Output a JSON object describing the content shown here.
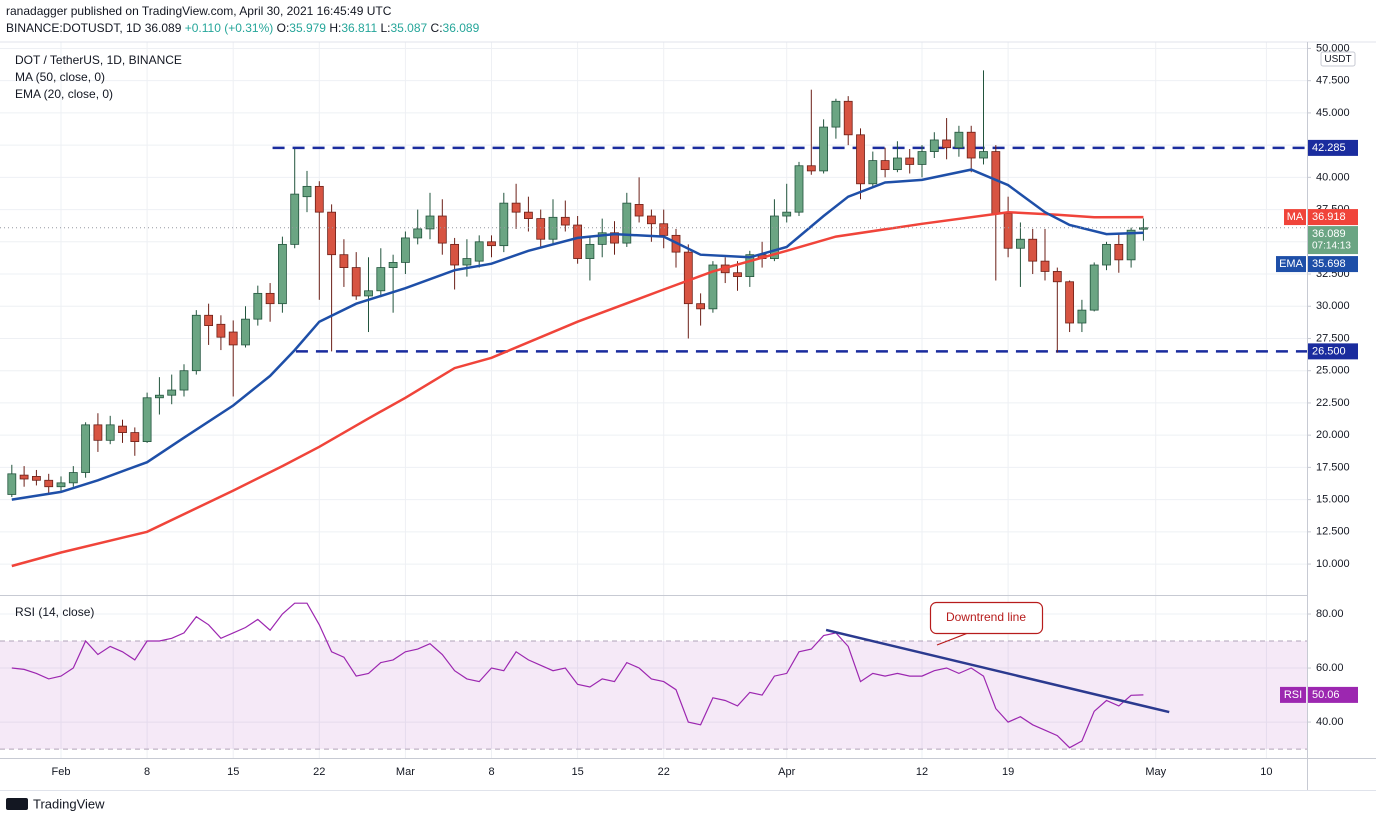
{
  "header": {
    "publisher": "ranadagger published on TradingView.com, April 30, 2021 16:45:49 UTC",
    "symbol": "BINANCE:DOTUSDT, 1D",
    "change": "+0.110 (+0.31%)",
    "ohlc_labels": [
      "O:",
      "H:",
      "L:",
      "C:"
    ],
    "logo": "TradingView"
  },
  "chart_data": {
    "type": "candlestick",
    "title": "DOT / TetherUS, 1D, BINANCE",
    "y_unit": "USDT",
    "countdown": "07:14:13",
    "up_color": "#6ba583",
    "down_color": "#d75442",
    "x": [
      -4,
      -3,
      -2,
      -1,
      0,
      1,
      2,
      3,
      4,
      5,
      6,
      7,
      8,
      9,
      10,
      11,
      12,
      13,
      14,
      15,
      16,
      17,
      18,
      19,
      20,
      21,
      22,
      23,
      24,
      25,
      26,
      27,
      28,
      29,
      30,
      31,
      32,
      33,
      34,
      35,
      36,
      37,
      38,
      39,
      40,
      41,
      42,
      43,
      44,
      45,
      46,
      47,
      48,
      49,
      50,
      51,
      52,
      53,
      54,
      55,
      56,
      57,
      58,
      59,
      60,
      61,
      62,
      63,
      64,
      65,
      66,
      67,
      68,
      69,
      70,
      71,
      72,
      73,
      74,
      75,
      76,
      77,
      78,
      79,
      80,
      81,
      82,
      83,
      84,
      85,
      86,
      87,
      88
    ],
    "open": [
      15.4,
      16.9,
      16.8,
      16.5,
      16.0,
      16.3,
      17.1,
      20.8,
      19.6,
      20.7,
      20.2,
      19.5,
      22.9,
      23.1,
      23.5,
      25.0,
      29.3,
      28.6,
      28.0,
      27.0,
      29.0,
      31.0,
      30.2,
      34.8,
      38.5,
      39.3,
      37.3,
      34.0,
      33.0,
      30.8,
      31.2,
      33.0,
      33.4,
      35.3,
      36.0,
      37.0,
      34.8,
      33.2,
      33.5,
      35.0,
      34.7,
      38.0,
      37.3,
      36.8,
      35.2,
      36.9,
      36.3,
      33.7,
      34.8,
      35.7,
      34.9,
      37.9,
      37.0,
      36.4,
      35.5,
      34.2,
      30.2,
      29.8,
      33.2,
      32.6,
      32.3,
      34.0,
      33.7,
      37.0,
      37.3,
      40.9,
      40.5,
      43.9,
      45.9,
      43.3,
      39.5,
      41.3,
      40.6,
      41.5,
      41.0,
      42.0,
      42.9,
      42.3,
      43.5,
      41.5,
      42.0,
      37.2,
      34.5,
      35.2,
      33.5,
      32.7,
      31.9,
      28.7,
      29.7,
      33.2,
      34.8,
      33.6,
      35.979
    ],
    "high": [
      17.7,
      17.6,
      17.3,
      17.0,
      16.8,
      17.6,
      21.0,
      21.7,
      21.5,
      21.2,
      20.6,
      23.3,
      24.5,
      24.7,
      25.5,
      29.7,
      30.2,
      29.3,
      28.9,
      30.0,
      31.6,
      31.8,
      35.4,
      42.2,
      40.5,
      39.7,
      37.9,
      35.2,
      34.2,
      33.8,
      34.5,
      34.0,
      35.8,
      37.5,
      38.8,
      38.3,
      35.3,
      35.2,
      35.5,
      35.5,
      38.8,
      39.5,
      38.5,
      37.5,
      38.3,
      38.2,
      37.0,
      35.4,
      36.8,
      36.6,
      38.8,
      40.0,
      37.5,
      37.5,
      36.0,
      34.8,
      31.0,
      33.5,
      33.8,
      33.5,
      34.3,
      35.0,
      38.3,
      39.5,
      41.2,
      46.8,
      44.5,
      46.1,
      46.3,
      43.8,
      42.0,
      42.3,
      42.8,
      42.2,
      42.5,
      43.5,
      44.6,
      44.0,
      44.0,
      48.3,
      42.5,
      38.5,
      36.5,
      36.0,
      36.0,
      33.0,
      32.0,
      30.5,
      33.4,
      35.0,
      35.6,
      36.1,
      36.811
    ],
    "low": [
      15.2,
      16.0,
      16.1,
      15.5,
      15.6,
      16.0,
      16.7,
      18.7,
      19.3,
      19.4,
      18.4,
      19.4,
      21.6,
      22.4,
      23.0,
      24.7,
      27.0,
      26.6,
      23.0,
      26.8,
      28.5,
      28.8,
      29.5,
      34.5,
      37.3,
      30.5,
      26.5,
      31.5,
      30.5,
      28.0,
      30.7,
      29.5,
      32.5,
      34.8,
      35.2,
      34.0,
      31.3,
      32.3,
      33.0,
      33.8,
      34.2,
      36.0,
      35.8,
      34.5,
      34.8,
      35.8,
      33.3,
      32.0,
      33.8,
      34.0,
      34.6,
      36.5,
      35.0,
      34.5,
      33.0,
      27.5,
      28.5,
      29.5,
      31.8,
      31.2,
      31.5,
      33.0,
      33.5,
      36.5,
      37.0,
      40.2,
      40.3,
      43.0,
      42.5,
      38.3,
      39.2,
      40.0,
      40.4,
      40.3,
      40.0,
      41.5,
      41.4,
      41.6,
      40.4,
      41.0,
      32.0,
      33.8,
      31.5,
      32.5,
      32.0,
      26.4,
      28.0,
      28.0,
      29.6,
      32.8,
      32.6,
      33.0,
      35.087
    ],
    "close": [
      17.0,
      16.6,
      16.5,
      16.0,
      16.3,
      17.1,
      20.8,
      19.6,
      20.8,
      20.2,
      19.5,
      22.9,
      23.1,
      23.5,
      25.0,
      29.3,
      28.5,
      27.6,
      27.0,
      29.0,
      31.0,
      30.2,
      34.8,
      38.7,
      39.3,
      37.3,
      34.0,
      33.0,
      30.8,
      31.2,
      33.0,
      33.4,
      35.3,
      36.0,
      37.0,
      34.9,
      33.2,
      33.7,
      35.0,
      34.7,
      38.0,
      37.3,
      36.8,
      35.2,
      36.9,
      36.3,
      33.7,
      34.8,
      35.7,
      34.9,
      38.0,
      37.0,
      36.4,
      35.5,
      34.2,
      30.2,
      29.8,
      33.2,
      32.6,
      32.3,
      34.0,
      33.7,
      37.0,
      37.3,
      40.9,
      40.5,
      43.9,
      45.9,
      43.3,
      39.5,
      41.3,
      40.6,
      41.5,
      41.0,
      42.0,
      42.9,
      42.3,
      43.5,
      41.5,
      42.0,
      37.2,
      34.5,
      35.2,
      33.5,
      32.7,
      31.9,
      28.7,
      29.7,
      33.2,
      34.8,
      33.6,
      35.9,
      36.089
    ],
    "lines": [
      {
        "name": "MA (50, close, 0)",
        "short": "MA",
        "color": "#f0443a",
        "x": [
          -4,
          0,
          7,
          14,
          18,
          21,
          25,
          28,
          32,
          35,
          42,
          49,
          53,
          59,
          63,
          70,
          77,
          81,
          84,
          88
        ],
        "values": [
          9.85,
          10.9,
          12.5,
          15.7,
          17.6,
          19.1,
          21.3,
          22.9,
          25.2,
          26.0,
          28.8,
          31.3,
          32.7,
          34.3,
          35.4,
          36.4,
          37.3,
          37.1,
          36.9,
          36.918
        ]
      },
      {
        "name": "EMA (20, close, 0)",
        "short": "EMA",
        "color": "#1e4fa8",
        "x": [
          -4,
          0,
          3,
          7,
          10,
          14,
          17,
          19,
          21,
          24,
          28,
          32,
          35,
          38,
          42,
          45,
          49,
          52,
          56,
          59,
          62,
          64,
          67,
          70,
          74,
          77,
          80,
          82,
          85,
          88
        ],
        "values": [
          15.0,
          15.6,
          16.5,
          17.9,
          19.8,
          22.3,
          24.6,
          26.6,
          28.8,
          30.2,
          31.4,
          32.8,
          33.3,
          34.3,
          35.3,
          35.6,
          35.4,
          34.0,
          33.8,
          34.6,
          37.0,
          38.5,
          39.6,
          39.8,
          40.6,
          39.4,
          37.3,
          36.3,
          35.6,
          35.698
        ]
      }
    ],
    "levels": [
      {
        "value": 42.285,
        "label": "42.285",
        "from": 17.2,
        "color": "#1a2c9e"
      },
      {
        "value": 26.5,
        "label": "26.500",
        "from": 19.1,
        "color": "#1a2c9e"
      }
    ],
    "xlim": [
      -4.96,
      101.3
    ],
    "xticks": [
      {
        "value": 0,
        "label": "Feb"
      },
      {
        "value": 7,
        "label": "8"
      },
      {
        "value": 14,
        "label": "15"
      },
      {
        "value": 21,
        "label": "22"
      },
      {
        "value": 28,
        "label": "Mar"
      },
      {
        "value": 35,
        "label": "8"
      },
      {
        "value": 42,
        "label": "15"
      },
      {
        "value": 49,
        "label": "22"
      },
      {
        "value": 59,
        "label": "Apr"
      },
      {
        "value": 70,
        "label": "12"
      },
      {
        "value": 77,
        "label": "19"
      },
      {
        "value": 89,
        "label": "May"
      },
      {
        "value": 98,
        "label": "10"
      }
    ],
    "ylim": [
      7.6,
      50.5
    ],
    "yticks": [
      {
        "value": 10,
        "label": "10.000"
      },
      {
        "value": 12.5,
        "label": "12.500"
      },
      {
        "value": 15,
        "label": "15.000"
      },
      {
        "value": 17.5,
        "label": "17.500"
      },
      {
        "value": 20,
        "label": "20.000"
      },
      {
        "value": 22.5,
        "label": "22.500"
      },
      {
        "value": 25,
        "label": "25.000"
      },
      {
        "value": 27.5,
        "label": "27.500"
      },
      {
        "value": 30,
        "label": "30.000"
      },
      {
        "value": 32.5,
        "label": "32.500"
      },
      {
        "value": 35,
        "label": "35.000"
      },
      {
        "value": 37.5,
        "label": "37.500"
      },
      {
        "value": 40,
        "label": "40.000"
      },
      {
        "value": 42.5,
        "label": "42.500"
      },
      {
        "value": 45,
        "label": "45.000"
      },
      {
        "value": 47.5,
        "label": "47.500"
      },
      {
        "value": 50,
        "label": "50.000"
      }
    ],
    "grid": true,
    "rsi": {
      "title": "RSI (14, close)",
      "short": "RSI",
      "color": "#9c27b0",
      "x": [
        -4,
        -3,
        -2,
        -1,
        0,
        1,
        2,
        3,
        4,
        5,
        6,
        7,
        8,
        9,
        10,
        11,
        12,
        13,
        14,
        15,
        16,
        17,
        18,
        19,
        20,
        21,
        22,
        23,
        24,
        25,
        26,
        27,
        28,
        29,
        30,
        31,
        32,
        33,
        34,
        35,
        36,
        37,
        38,
        39,
        40,
        41,
        42,
        43,
        44,
        45,
        46,
        47,
        48,
        49,
        50,
        51,
        52,
        53,
        54,
        55,
        56,
        57,
        58,
        59,
        60,
        61,
        62,
        63,
        64,
        65,
        66,
        67,
        68,
        69,
        70,
        71,
        72,
        73,
        74,
        75,
        76,
        77,
        78,
        79,
        80,
        81,
        82,
        83,
        84,
        85,
        86,
        87,
        88
      ],
      "values": [
        60,
        59.5,
        58,
        56,
        57,
        60,
        70,
        65,
        68,
        66,
        63,
        70,
        70,
        71,
        73,
        79,
        76,
        71,
        73,
        75,
        78,
        74,
        80,
        84,
        84,
        76,
        66,
        64,
        57,
        58,
        62,
        63,
        66,
        67,
        69,
        65,
        59,
        56,
        55,
        60,
        59,
        66,
        63,
        61,
        59,
        60,
        54,
        53,
        56,
        55,
        62,
        60,
        56,
        55,
        52,
        40,
        39,
        49,
        48,
        46,
        51,
        50,
        57,
        58,
        66,
        67,
        72,
        73,
        68,
        55,
        58,
        57,
        58,
        57,
        57,
        59,
        60,
        58,
        60,
        57,
        45,
        40,
        42,
        39,
        37,
        35,
        30.5,
        33,
        44,
        48,
        46,
        49.9,
        50.06
      ],
      "band": [
        30,
        70
      ],
      "ylim": [
        26.7,
        86.3
      ],
      "yticks": [
        {
          "value": 40,
          "label": "40.00"
        },
        {
          "value": 60,
          "label": "60.00"
        },
        {
          "value": 80,
          "label": "80.00"
        }
      ],
      "trendline": {
        "x": [
          62.2,
          90.1
        ],
        "values": [
          74.1,
          43.7
        ],
        "color": "#2b3a8f"
      },
      "annotation": "Downtrend line"
    }
  }
}
